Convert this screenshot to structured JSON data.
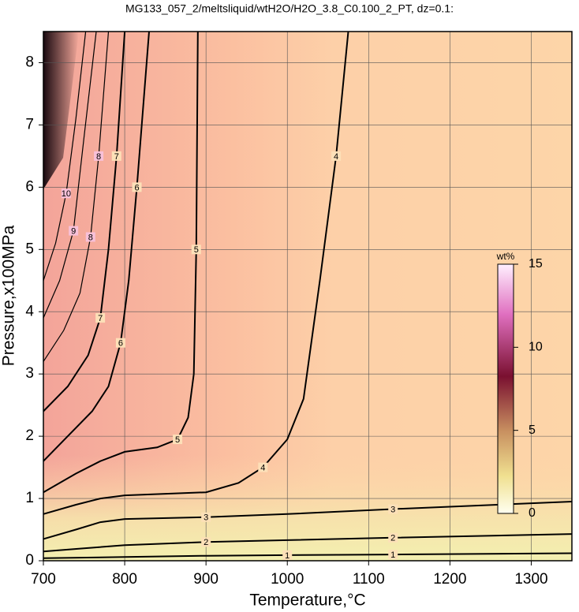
{
  "chart_data": {
    "type": "contour",
    "title": "MG133_057_2/meltsliquid/wtH2O/H2O_3.8_C0.100_2_PT, dz=0.1:",
    "x_label": "Temperature,°C",
    "y_label": "Pressure,x100MPa",
    "xlim": [
      700,
      1350
    ],
    "ylim": [
      0,
      8.5
    ],
    "xticks": [
      700,
      800,
      900,
      1000,
      1100,
      1200,
      1300
    ],
    "yticks": [
      0,
      1,
      2,
      3,
      4,
      5,
      6,
      7,
      8
    ],
    "grid": true,
    "colorbar": {
      "label": "wt%",
      "lim": [
        0,
        15
      ],
      "ticks": [
        0,
        5,
        10,
        15
      ]
    },
    "contours": [
      {
        "level": 1,
        "x": [
          700,
          800,
          900,
          1000,
          1130,
          1350
        ],
        "y": [
          0.04,
          0.06,
          0.08,
          0.09,
          0.1,
          0.12
        ]
      },
      {
        "level": 2,
        "x": [
          700,
          750,
          800,
          900,
          1000,
          1130,
          1350
        ],
        "y": [
          0.15,
          0.2,
          0.25,
          0.3,
          0.33,
          0.37,
          0.43
        ]
      },
      {
        "level": 3,
        "x": [
          700,
          740,
          770,
          800,
          900,
          1000,
          1130,
          1350
        ],
        "y": [
          0.35,
          0.5,
          0.62,
          0.67,
          0.7,
          0.75,
          0.83,
          0.95
        ]
      },
      {
        "level": 4,
        "x": [
          700,
          740,
          770,
          800,
          900,
          940,
          970,
          1000,
          1020,
          1040,
          1060,
          1075
        ],
        "y": [
          0.75,
          0.9,
          1.0,
          1.05,
          1.1,
          1.25,
          1.5,
          1.95,
          2.6,
          4.5,
          6.5,
          8.5
        ]
      },
      {
        "level": 5,
        "x": [
          700,
          740,
          770,
          800,
          840,
          865,
          878,
          885,
          888,
          890
        ],
        "y": [
          1.1,
          1.4,
          1.6,
          1.75,
          1.82,
          1.95,
          2.3,
          3.0,
          5.0,
          8.5
        ]
      },
      {
        "level": 6,
        "x": [
          700,
          730,
          760,
          780,
          795,
          805,
          815,
          830
        ],
        "y": [
          1.6,
          2.0,
          2.4,
          2.8,
          3.5,
          4.5,
          6.0,
          8.5
        ]
      },
      {
        "level": 7,
        "x": [
          700,
          730,
          755,
          770,
          780,
          790,
          800
        ],
        "y": [
          2.4,
          2.8,
          3.3,
          3.9,
          5.0,
          6.5,
          8.5
        ]
      },
      {
        "level": 8,
        "x": [
          700,
          725,
          745,
          758,
          768,
          780
        ],
        "y": [
          3.2,
          3.7,
          4.3,
          5.2,
          6.5,
          8.5
        ]
      },
      {
        "level": 9,
        "x": [
          700,
          720,
          737,
          750,
          765
        ],
        "y": [
          3.9,
          4.5,
          5.3,
          6.8,
          8.5
        ]
      },
      {
        "level": 10,
        "x": [
          700,
          715,
          728,
          740,
          752
        ],
        "y": [
          4.5,
          5.1,
          5.9,
          7.1,
          8.5
        ]
      }
    ]
  }
}
